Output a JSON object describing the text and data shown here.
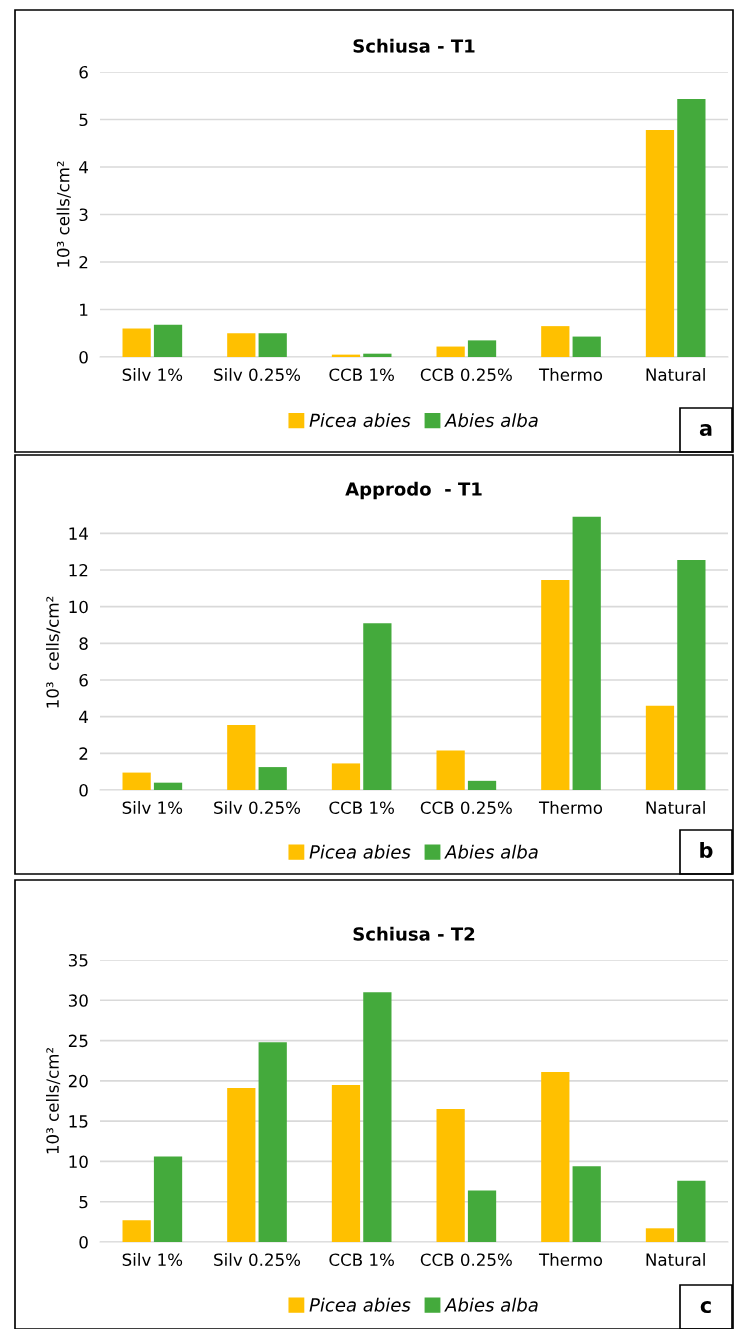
{
  "chart_data": [
    {
      "type": "bar",
      "title": "Schiusa - T1",
      "ylabel": "10³ cells/cm²",
      "categories": [
        "Silv 1%",
        "Silv 0.25%",
        "CCB 1%",
        "CCB 0.25%",
        "Thermo",
        "Natural"
      ],
      "series": [
        {
          "name": "Picea abies",
          "color": "#ffc000",
          "values": [
            0.6,
            0.5,
            0.05,
            0.22,
            0.65,
            4.78
          ]
        },
        {
          "name": "Abies alba",
          "color": "#44aa3c",
          "values": [
            0.68,
            0.5,
            0.07,
            0.35,
            0.43,
            5.43
          ]
        }
      ],
      "ylim": [
        0,
        6
      ],
      "yticks": [
        0,
        1,
        2,
        3,
        4,
        5,
        6
      ],
      "grid": "y",
      "legend": "bottom",
      "annotations": [
        "a"
      ]
    },
    {
      "type": "bar",
      "title": "Approdo  - T1",
      "ylabel": "10³  cells/cm²",
      "categories": [
        "Silv 1%",
        "Silv 0.25%",
        "CCB 1%",
        "CCB 0.25%",
        "Thermo",
        "Natural"
      ],
      "series": [
        {
          "name": "Picea abies",
          "color": "#ffc000",
          "values": [
            0.95,
            3.55,
            1.45,
            2.15,
            11.45,
            4.6
          ]
        },
        {
          "name": "Abies alba",
          "color": "#44aa3c",
          "values": [
            0.4,
            1.25,
            9.1,
            0.5,
            14.9,
            12.55
          ]
        }
      ],
      "ylim": [
        0,
        15
      ],
      "yticks": [
        0,
        2,
        4,
        6,
        8,
        10,
        12,
        14
      ],
      "grid": "y",
      "legend": "bottom",
      "annotations": [
        "b"
      ]
    },
    {
      "type": "bar",
      "title": "Schiusa - T2",
      "ylabel": "10³ cells/cm²",
      "categories": [
        "Silv 1%",
        "Silv 0.25%",
        "CCB 1%",
        "CCB 0.25%",
        "Thermo",
        "Natural"
      ],
      "series": [
        {
          "name": "Picea abies",
          "color": "#ffc000",
          "values": [
            2.7,
            19.1,
            19.5,
            16.5,
            21.1,
            1.7
          ]
        },
        {
          "name": "Abies alba",
          "color": "#44aa3c",
          "values": [
            10.6,
            24.8,
            31.0,
            6.4,
            9.4,
            7.6
          ]
        }
      ],
      "ylim": [
        0,
        35
      ],
      "yticks": [
        0,
        5,
        10,
        15,
        20,
        25,
        30,
        35
      ],
      "grid": "y",
      "legend": "bottom",
      "annotations": [
        "c"
      ]
    }
  ]
}
